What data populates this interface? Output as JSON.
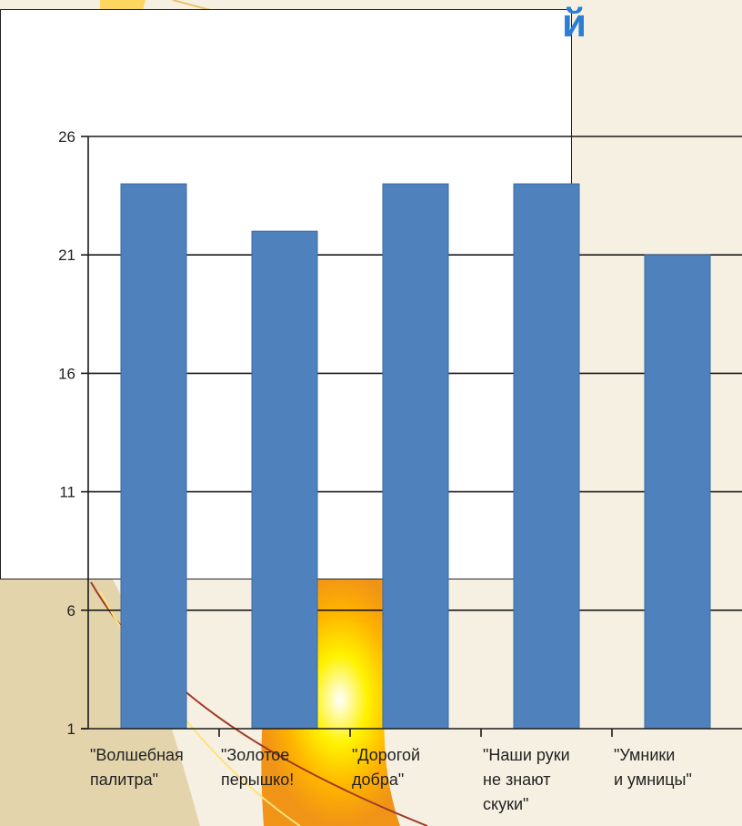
{
  "slide": {
    "title_fragment": "й"
  },
  "colors": {
    "bar": "#4f81bd",
    "bar_stroke": "#3a6aa3",
    "grid": "#1a1a1a",
    "title": "#2a7fd4"
  },
  "chart_data": {
    "type": "bar",
    "categories": [
      [
        "\"Волшебная",
        "палитра\""
      ],
      [
        "\"Золотое",
        "перышко!"
      ],
      [
        "\"Дорогой",
        "добра\""
      ],
      [
        "\"Наши руки",
        "не знают",
        "скуки\""
      ],
      [
        "\"Умники",
        "и умницы\""
      ]
    ],
    "values": [
      24,
      22,
      24,
      24,
      21
    ],
    "ylim": [
      1,
      26
    ],
    "yticks": [
      1,
      6,
      11,
      16,
      21,
      26
    ],
    "grid": true,
    "title": "",
    "xlabel": "",
    "ylabel": ""
  }
}
